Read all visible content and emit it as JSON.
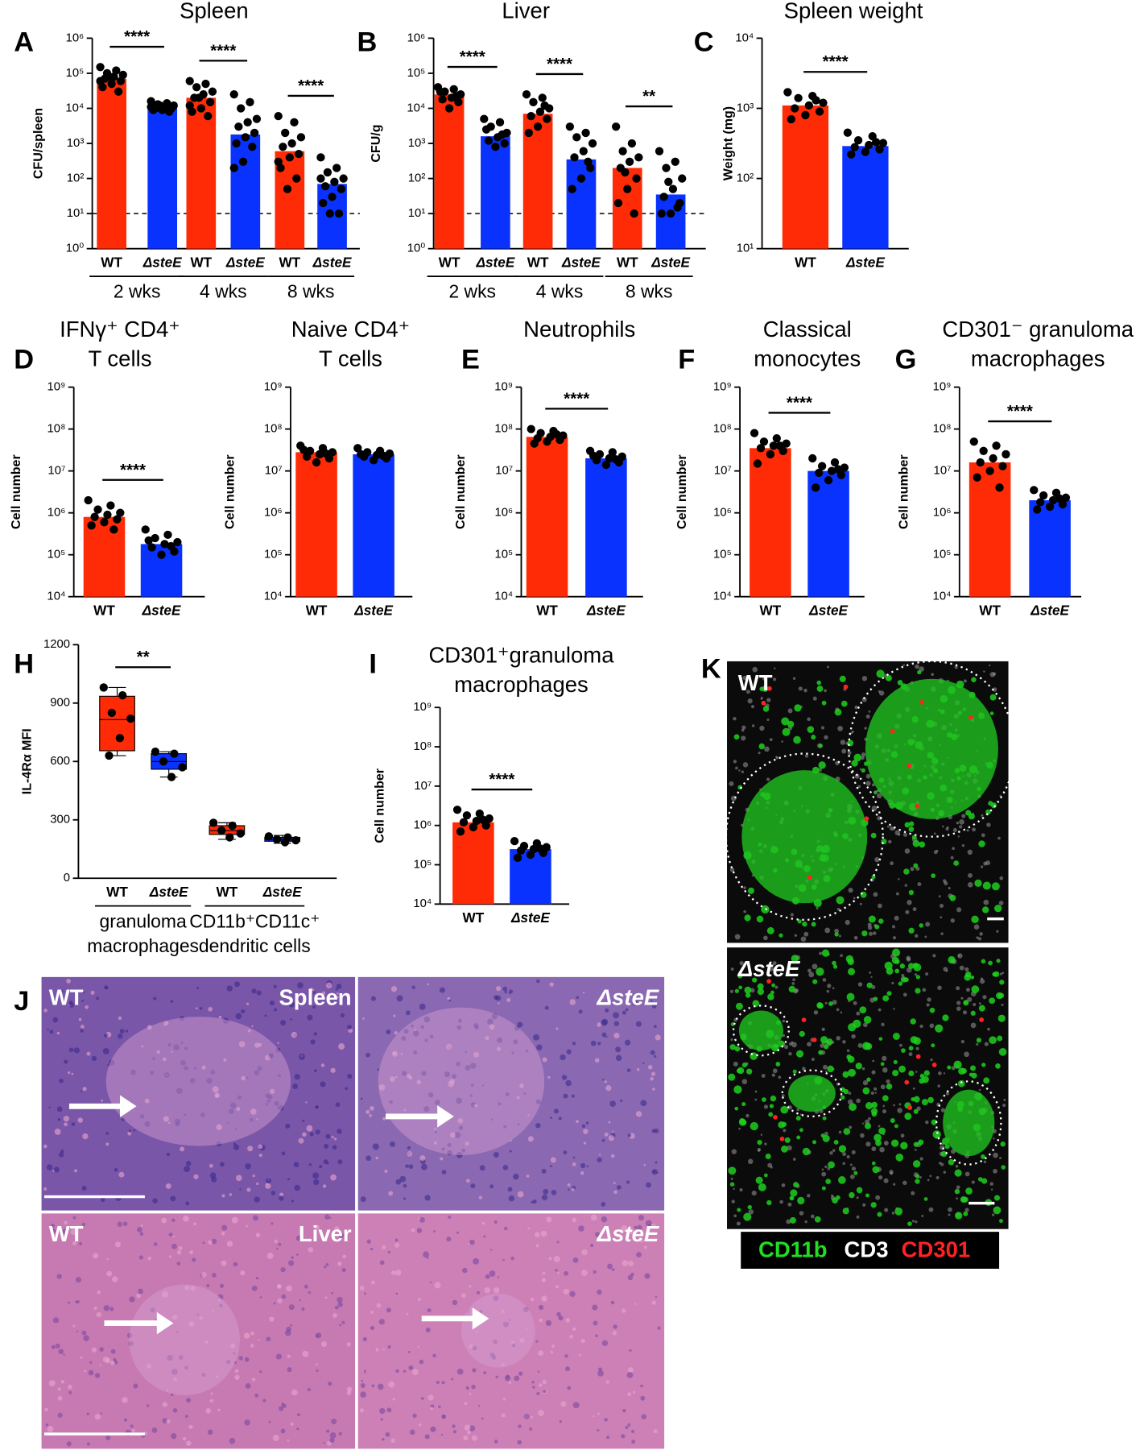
{
  "chart_data": [
    {
      "type": "bar",
      "panel": "A",
      "title": "Spleen",
      "ylabel": "CFU/spleen",
      "log": true,
      "ylim": [
        1,
        1000000.0
      ],
      "yticks": [
        {
          "value": 1,
          "label": "10⁰"
        },
        {
          "value": 10,
          "label": "10¹"
        },
        {
          "value": 100,
          "label": "10²"
        },
        {
          "value": 1000,
          "label": "10³"
        },
        {
          "value": 10000.0,
          "label": "10⁴"
        },
        {
          "value": 100000.0,
          "label": "10⁵"
        },
        {
          "value": 1000000.0,
          "label": "10⁶"
        }
      ],
      "threshold": 10,
      "colors": [
        "#ff2b06",
        "#0a32ff"
      ],
      "groups": [
        {
          "label": "2 wks",
          "significance": "****",
          "categories": [
            "WT",
            "ΔsteE"
          ],
          "values": [
            70000,
            11000
          ],
          "points": [
            [
              150000,
              120000,
              100000,
              90000,
              80000,
              70000,
              60000,
              50000,
              40000,
              30000,
              80000,
              60000
            ],
            [
              16000,
              14000,
              13000,
              12000,
              11000,
              10000,
              10000,
              9000,
              9000,
              8000,
              12000,
              11000
            ]
          ]
        },
        {
          "label": "4 wks",
          "significance": "****",
          "categories": [
            "WT",
            "ΔsteE"
          ],
          "values": [
            20000,
            1800
          ],
          "points": [
            [
              60000,
              50000,
              40000,
              30000,
              25000,
              20000,
              15000,
              10000,
              8000,
              6000,
              20000,
              12000
            ],
            [
              25000,
              15000,
              10000,
              5000,
              4000,
              3000,
              2000,
              1500,
              1000,
              800,
              300,
              200
            ]
          ]
        },
        {
          "label": "8 wks",
          "significance": "****",
          "categories": [
            "WT",
            "ΔsteE"
          ],
          "values": [
            600,
            70
          ],
          "points": [
            [
              6000,
              4000,
              2000,
              1500,
              1000,
              800,
              500,
              400,
              200,
              100,
              50,
              300
            ],
            [
              400,
              200,
              150,
              100,
              80,
              60,
              50,
              30,
              20,
              10,
              10,
              100
            ]
          ]
        }
      ]
    },
    {
      "type": "bar",
      "panel": "B",
      "title": "Liver",
      "ylabel": "CFU/g",
      "log": true,
      "ylim": [
        1,
        1000000.0
      ],
      "yticks": [
        {
          "value": 1,
          "label": "10⁰"
        },
        {
          "value": 10,
          "label": "10¹"
        },
        {
          "value": 100,
          "label": "10²"
        },
        {
          "value": 1000,
          "label": "10³"
        },
        {
          "value": 10000.0,
          "label": "10⁴"
        },
        {
          "value": 100000.0,
          "label": "10⁵"
        },
        {
          "value": 1000000.0,
          "label": "10⁶"
        }
      ],
      "threshold": 10,
      "colors": [
        "#ff2b06",
        "#0a32ff"
      ],
      "groups": [
        {
          "label": "2 wks",
          "significance": "****",
          "categories": [
            "WT",
            "ΔsteE"
          ],
          "values": [
            25000,
            1600
          ],
          "points": [
            [
              40000,
              35000,
              30000,
              25000,
              20000,
              18000,
              15000,
              10000,
              30000,
              22000
            ],
            [
              5000,
              4000,
              3000,
              2000,
              1500,
              1200,
              1000,
              800,
              2500,
              1800
            ]
          ]
        },
        {
          "label": "4 wks",
          "significance": "****",
          "categories": [
            "WT",
            "ΔsteE"
          ],
          "values": [
            7000,
            350
          ],
          "points": [
            [
              25000,
              20000,
              15000,
              10000,
              8000,
              6000,
              5000,
              3000,
              2000,
              12000
            ],
            [
              3000,
              2000,
              1500,
              1000,
              600,
              400,
              200,
              100,
              50,
              300
            ]
          ]
        },
        {
          "label": "8 wks",
          "significance": "**",
          "categories": [
            "WT",
            "ΔsteE"
          ],
          "values": [
            200,
            35
          ],
          "points": [
            [
              3000,
              1000,
              600,
              400,
              300,
              200,
              100,
              50,
              20,
              10,
              150
            ],
            [
              600,
              300,
              200,
              100,
              50,
              30,
              20,
              10,
              10,
              15,
              80
            ]
          ]
        }
      ]
    },
    {
      "type": "bar",
      "panel": "C",
      "title": "Spleen weight",
      "ylabel": "Weight (mg)",
      "log": true,
      "ylim": [
        10,
        10000
      ],
      "yticks": [
        {
          "value": 10,
          "label": "10¹"
        },
        {
          "value": 100,
          "label": "10²"
        },
        {
          "value": 1000,
          "label": "10³"
        },
        {
          "value": 10000,
          "label": "10⁴"
        }
      ],
      "colors": [
        "#ff2b06",
        "#0a32ff"
      ],
      "groups": [
        {
          "significance": "****",
          "categories": [
            "WT",
            "ΔsteE"
          ],
          "values": [
            1100,
            290
          ],
          "points": [
            [
              1700,
              1500,
              1400,
              1200,
              1100,
              1000,
              900,
              800,
              700,
              1300
            ],
            [
              450,
              400,
              350,
              320,
              300,
              280,
              260,
              240,
              220,
              330
            ]
          ]
        }
      ]
    },
    {
      "type": "bar",
      "panel": "D",
      "title": [
        "IFNγ⁺ CD4⁺",
        "T cells"
      ],
      "ylabel": "Cell number",
      "log": true,
      "ylim": [
        10000.0,
        1000000000.0
      ],
      "yticks": [
        {
          "value": 10000.0,
          "label": "10⁴"
        },
        {
          "value": 100000.0,
          "label": "10⁵"
        },
        {
          "value": 1000000.0,
          "label": "10⁶"
        },
        {
          "value": 10000000.0,
          "label": "10⁷"
        },
        {
          "value": 100000000.0,
          "label": "10⁸"
        },
        {
          "value": 1000000000.0,
          "label": "10⁹"
        }
      ],
      "colors": [
        "#ff2b06",
        "#0a32ff"
      ],
      "groups": [
        {
          "significance": "****",
          "categories": [
            "WT",
            "ΔsteE"
          ],
          "values": [
            800000,
            180000
          ],
          "points": [
            [
              2000000,
              1500000,
              1200000,
              1000000,
              900000,
              800000,
              700000,
              600000,
              500000,
              400000
            ],
            [
              400000,
              300000,
              250000,
              200000,
              180000,
              150000,
              120000,
              100000,
              220000,
              160000
            ]
          ]
        }
      ]
    },
    {
      "type": "bar",
      "title": [
        "Naive CD4⁺",
        "T cells"
      ],
      "ylabel": "Cell number",
      "log": true,
      "ylim": [
        10000.0,
        1000000000.0
      ],
      "yticks": [
        {
          "value": 10000.0,
          "label": "10⁴"
        },
        {
          "value": 100000.0,
          "label": "10⁵"
        },
        {
          "value": 1000000.0,
          "label": "10⁶"
        },
        {
          "value": 10000000.0,
          "label": "10⁷"
        },
        {
          "value": 100000000.0,
          "label": "10⁸"
        },
        {
          "value": 1000000000.0,
          "label": "10⁹"
        }
      ],
      "colors": [
        "#ff2b06",
        "#0a32ff"
      ],
      "groups": [
        {
          "categories": [
            "WT",
            "ΔsteE"
          ],
          "values": [
            28000000,
            25000000
          ],
          "points": [
            [
              40000000,
              35000000,
              30000000,
              28000000,
              25000000,
              22000000,
              20000000,
              16000000,
              32000000,
              26000000
            ],
            [
              35000000,
              30000000,
              28000000,
              26000000,
              24000000,
              22000000,
              20000000,
              18000000,
              25000000,
              23000000
            ]
          ]
        }
      ]
    },
    {
      "type": "bar",
      "panel": "E",
      "title": "Neutrophils",
      "ylabel": "Cell number",
      "log": true,
      "ylim": [
        10000.0,
        1000000000.0
      ],
      "yticks": [
        {
          "value": 10000.0,
          "label": "10⁴"
        },
        {
          "value": 100000.0,
          "label": "10⁵"
        },
        {
          "value": 1000000.0,
          "label": "10⁶"
        },
        {
          "value": 10000000.0,
          "label": "10⁷"
        },
        {
          "value": 100000000.0,
          "label": "10⁸"
        },
        {
          "value": 1000000000.0,
          "label": "10⁹"
        }
      ],
      "colors": [
        "#ff2b06",
        "#0a32ff"
      ],
      "groups": [
        {
          "significance": "****",
          "categories": [
            "WT",
            "ΔsteE"
          ],
          "values": [
            65000000,
            20000000
          ],
          "points": [
            [
              100000000,
              90000000,
              80000000,
              70000000,
              65000000,
              60000000,
              55000000,
              50000000,
              45000000,
              75000000
            ],
            [
              30000000,
              28000000,
              25000000,
              22000000,
              20000000,
              18000000,
              16000000,
              14000000,
              23000000,
              19000000
            ]
          ]
        }
      ]
    },
    {
      "type": "bar",
      "panel": "F",
      "title": [
        "Classical",
        "monocytes"
      ],
      "ylabel": "Cell number",
      "log": true,
      "ylim": [
        10000.0,
        1000000000.0
      ],
      "yticks": [
        {
          "value": 10000.0,
          "label": "10⁴"
        },
        {
          "value": 100000.0,
          "label": "10⁵"
        },
        {
          "value": 1000000.0,
          "label": "10⁶"
        },
        {
          "value": 10000000.0,
          "label": "10⁷"
        },
        {
          "value": 100000000.0,
          "label": "10⁸"
        },
        {
          "value": 1000000000.0,
          "label": "10⁹"
        }
      ],
      "colors": [
        "#ff2b06",
        "#0a32ff"
      ],
      "groups": [
        {
          "significance": "****",
          "categories": [
            "WT",
            "ΔsteE"
          ],
          "values": [
            35000000,
            10000000
          ],
          "points": [
            [
              80000000,
              60000000,
              50000000,
              45000000,
              40000000,
              35000000,
              30000000,
              25000000,
              15000000,
              40000000
            ],
            [
              20000000,
              16000000,
              13000000,
              12000000,
              10000000,
              9000000,
              8000000,
              6000000,
              4000000,
              11000000
            ]
          ]
        }
      ]
    },
    {
      "type": "bar",
      "panel": "G",
      "title": [
        "CD301⁻ granuloma",
        "macrophages"
      ],
      "ylabel": "Cell number",
      "log": true,
      "ylim": [
        10000.0,
        1000000000.0
      ],
      "yticks": [
        {
          "value": 10000.0,
          "label": "10⁴"
        },
        {
          "value": 100000.0,
          "label": "10⁵"
        },
        {
          "value": 1000000.0,
          "label": "10⁶"
        },
        {
          "value": 10000000.0,
          "label": "10⁷"
        },
        {
          "value": 100000000.0,
          "label": "10⁸"
        },
        {
          "value": 1000000000.0,
          "label": "10⁹"
        }
      ],
      "colors": [
        "#ff2b06",
        "#0a32ff"
      ],
      "groups": [
        {
          "significance": "****",
          "categories": [
            "WT",
            "ΔsteE"
          ],
          "values": [
            16000000,
            2000000
          ],
          "points": [
            [
              50000000,
              40000000,
              30000000,
              25000000,
              20000000,
              16000000,
              13000000,
              10000000,
              7000000,
              4000000
            ],
            [
              3500000,
              3000000,
              2600000,
              2300000,
              2000000,
              1800000,
              1600000,
              1400000,
              1200000,
              2200000
            ]
          ]
        }
      ]
    },
    {
      "type": "box",
      "panel": "H",
      "ylabel": "IL-4Rα MFI",
      "ylim": [
        0,
        1200
      ],
      "yticks": [
        0,
        300,
        600,
        900,
        1200
      ],
      "colors": [
        "#ff2b06",
        "#0a32ff"
      ],
      "groups": [
        {
          "label": [
            "granuloma",
            "macrophages"
          ],
          "significance": "**",
          "categories": [
            "WT",
            "ΔsteE"
          ],
          "boxes": [
            {
              "min": 630,
              "q1": 655,
              "median": 815,
              "q3": 935,
              "max": 980
            },
            {
              "min": 520,
              "q1": 560,
              "median": 600,
              "q3": 640,
              "max": 650
            }
          ],
          "points": [
            [
              980,
              940,
              850,
              820,
              720,
              630
            ],
            [
              650,
              640,
              600,
              570,
              520
            ]
          ]
        },
        {
          "label": [
            "CD11b⁺CD11c⁺",
            "dendritic cells"
          ],
          "categories": [
            "WT",
            "ΔsteE"
          ],
          "boxes": [
            {
              "min": 200,
              "q1": 225,
              "median": 245,
              "q3": 270,
              "max": 285
            },
            {
              "min": 180,
              "q1": 190,
              "median": 200,
              "q3": 210,
              "max": 220
            }
          ],
          "points": [
            [
              285,
              270,
              245,
              230,
              210
            ],
            [
              215,
              210,
              200,
              195,
              185
            ]
          ]
        }
      ]
    },
    {
      "type": "bar",
      "panel": "I",
      "title": [
        "CD301⁺granuloma",
        "macrophages"
      ],
      "ylabel": "Cell number",
      "log": true,
      "ylim": [
        10000.0,
        1000000000.0
      ],
      "yticks": [
        {
          "value": 10000.0,
          "label": "10⁴"
        },
        {
          "value": 100000.0,
          "label": "10⁵"
        },
        {
          "value": 1000000.0,
          "label": "10⁶"
        },
        {
          "value": 10000000.0,
          "label": "10⁷"
        },
        {
          "value": 100000000.0,
          "label": "10⁸"
        },
        {
          "value": 1000000000.0,
          "label": "10⁹"
        }
      ],
      "colors": [
        "#ff2b06",
        "#0a32ff"
      ],
      "groups": [
        {
          "significance": "****",
          "categories": [
            "WT",
            "ΔsteE"
          ],
          "values": [
            1200000,
            250000
          ],
          "points": [
            [
              2500000,
              2000000,
              1800000,
              1500000,
              1300000,
              1200000,
              1000000,
              900000,
              700000,
              1400000
            ],
            [
              400000,
              350000,
              300000,
              280000,
              250000,
              230000,
              200000,
              180000,
              150000,
              260000
            ]
          ]
        }
      ]
    }
  ],
  "images": {
    "J": {
      "panel": "J",
      "tiles": [
        {
          "label": "WT",
          "tissue": "Spleen"
        },
        {
          "label": "ΔsteE"
        },
        {
          "label": "WT",
          "tissue": "Liver"
        },
        {
          "label": "ΔsteE"
        }
      ]
    },
    "K": {
      "panel": "K",
      "tiles": [
        {
          "label": "WT"
        },
        {
          "label": "ΔsteE"
        }
      ],
      "legend": [
        {
          "text": "CD11b",
          "color": "#22dd22"
        },
        {
          "text": "CD3",
          "color": "#ffffff"
        },
        {
          "text": "CD301",
          "color": "#ff2222"
        }
      ]
    }
  }
}
